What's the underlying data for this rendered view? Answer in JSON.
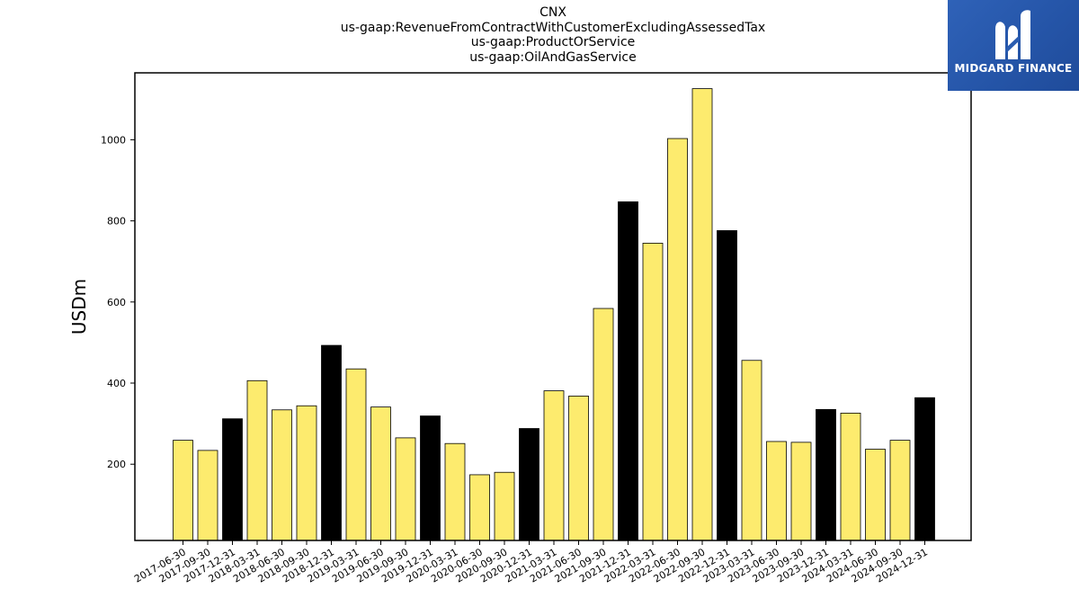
{
  "chart_data": {
    "type": "bar",
    "title_lines": [
      "CNX",
      "us-gaap:RevenueFromContractWithCustomerExcludingAssessedTax",
      "us-gaap:ProductOrService",
      "us-gaap:OilAndGasService"
    ],
    "xlabel": "",
    "ylabel": "USDm",
    "ylim": [
      12,
      1165
    ],
    "yticks": [
      200,
      400,
      600,
      800,
      1000
    ],
    "grid": false,
    "categories": [
      "2017-06-30",
      "2017-09-30",
      "2017-12-31",
      "2018-03-31",
      "2018-06-30",
      "2018-09-30",
      "2018-12-31",
      "2019-03-31",
      "2019-06-30",
      "2019-09-30",
      "2019-12-31",
      "2020-03-31",
      "2020-06-30",
      "2020-09-30",
      "2020-12-31",
      "2021-03-31",
      "2021-06-30",
      "2021-09-30",
      "2021-12-31",
      "2022-03-31",
      "2022-06-30",
      "2022-09-30",
      "2022-12-31",
      "2023-03-31",
      "2023-06-30",
      "2023-09-30",
      "2023-12-31",
      "2024-03-31",
      "2024-06-30",
      "2024-09-30",
      "2024-12-31"
    ],
    "values": [
      259,
      234,
      312,
      406,
      334,
      344,
      493,
      435,
      341,
      265,
      319,
      251,
      174,
      180,
      288,
      381,
      368,
      584,
      847,
      745,
      1003,
      1126,
      776,
      456,
      256,
      254,
      335,
      326,
      237,
      259,
      364
    ],
    "colors": {
      "quarter": "#fdeb6e",
      "year_end": "#000000",
      "edge": "#000000"
    }
  },
  "logo": {
    "text": "MIDGARD FINANCE",
    "icon": "midgard-m-logo-icon",
    "background": "#2a5cb0"
  }
}
